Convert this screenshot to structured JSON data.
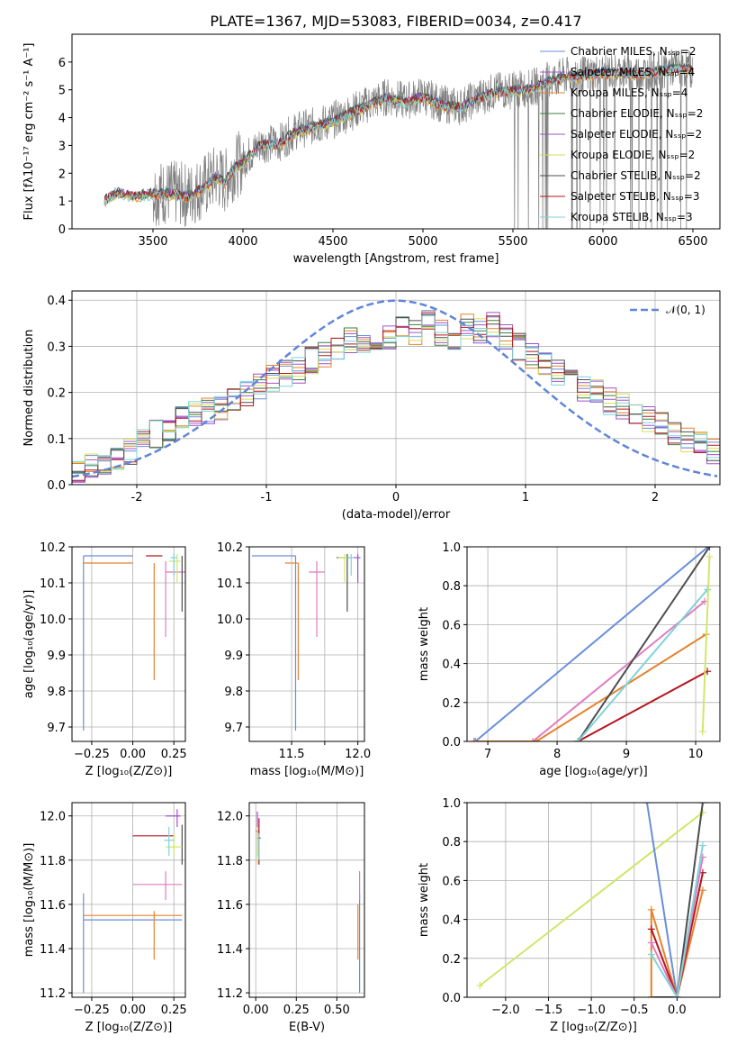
{
  "figure": {
    "title": "PLATE=1367, MJD=53083, FIBERID=0034, z=0.417"
  },
  "colors": {
    "blue": "#6a8ed8",
    "purple": "#a14fd1",
    "orange": "#e5822d",
    "green": "#3e7f3e",
    "violet": "#9b57c6",
    "yellow": "#d6dc50",
    "dgray": "#4d4d4d",
    "red": "#b5161e",
    "cyan": "#7fd3d9",
    "pink": "#e07bc0",
    "lime": "#cde86a",
    "gray": "#808080"
  },
  "chart_data": [
    {
      "id": "spectrum",
      "type": "line",
      "xlabel": "wavelength [Angstrom, rest frame]",
      "ylabel": "Flux [fλ10⁻¹⁷ erg cm⁻² s⁻¹ A⁻¹]",
      "xlim": [
        3050,
        6650
      ],
      "ylim": [
        0,
        7
      ],
      "xticks": [
        3500,
        4000,
        4500,
        5000,
        5500,
        6000,
        6500
      ],
      "yticks": [
        0,
        1,
        2,
        3,
        4,
        5,
        6
      ],
      "grid": false,
      "legend_position": "top-right",
      "series": [
        {
          "name": "Chabrier MILES, N_SSP=2",
          "color": "#6a8ed8"
        },
        {
          "name": "Salpeter MILES, N_SSP=4",
          "color": "#a14fd1"
        },
        {
          "name": "Kroupa MILES, N_SSP=4",
          "color": "#e5822d"
        },
        {
          "name": "Chabrier ELODIE, N_SSP=2",
          "color": "#3e7f3e"
        },
        {
          "name": "Salpeter ELODIE, N_SSP=2",
          "color": "#9b57c6"
        },
        {
          "name": "Kroupa ELODIE, N_SSP=2",
          "color": "#d6dc50"
        },
        {
          "name": "Chabrier STELIB, N_SSP=2",
          "color": "#4d4d4d"
        },
        {
          "name": "Salpeter STELIB, N_SSP=3",
          "color": "#b5161e"
        },
        {
          "name": "Kroupa STELIB, N_SSP=3",
          "color": "#7fd3d9"
        }
      ],
      "model_continuum": [
        [
          3230,
          1.05
        ],
        [
          3300,
          1.35
        ],
        [
          3400,
          1.2
        ],
        [
          3500,
          1.3
        ],
        [
          3600,
          1.3
        ],
        [
          3700,
          1.2
        ],
        [
          3800,
          1.6
        ],
        [
          3850,
          1.9
        ],
        [
          3900,
          1.7
        ],
        [
          3950,
          2.2
        ],
        [
          4000,
          2.45
        ],
        [
          4100,
          3.05
        ],
        [
          4200,
          3.1
        ],
        [
          4300,
          3.55
        ],
        [
          4400,
          3.7
        ],
        [
          4500,
          3.9
        ],
        [
          4600,
          4.2
        ],
        [
          4700,
          4.5
        ],
        [
          4800,
          4.75
        ],
        [
          4900,
          4.6
        ],
        [
          5000,
          4.8
        ],
        [
          5100,
          4.5
        ],
        [
          5200,
          4.4
        ],
        [
          5300,
          4.7
        ],
        [
          5400,
          4.95
        ],
        [
          5500,
          5.0
        ],
        [
          5600,
          5.05
        ],
        [
          5700,
          5.35
        ],
        [
          5800,
          5.5
        ],
        [
          5900,
          5.55
        ],
        [
          6000,
          5.65
        ],
        [
          6100,
          5.65
        ],
        [
          6200,
          5.6
        ],
        [
          6300,
          5.7
        ],
        [
          6400,
          5.8
        ],
        [
          6500,
          5.75
        ],
        [
          6550,
          5.6
        ]
      ],
      "data_start": 3230,
      "data_end": 6500
    },
    {
      "id": "residuals",
      "type": "line",
      "xlabel": "(data-model)/error",
      "ylabel": "Normed distribution",
      "xlim": [
        -2.5,
        2.5
      ],
      "ylim": [
        0,
        0.42
      ],
      "xticks": [
        -2,
        -1,
        0,
        1,
        2
      ],
      "yticks": [
        0.0,
        0.1,
        0.2,
        0.3,
        0.4
      ],
      "grid": true,
      "legend_position": "top-right",
      "legend": "𝒩(0, 1)",
      "gaussian_color": "#5f86d6",
      "hist_centers": [
        -2.45,
        -2.35,
        -2.25,
        -2.15,
        -2.05,
        -1.95,
        -1.85,
        -1.75,
        -1.65,
        -1.55,
        -1.45,
        -1.35,
        -1.25,
        -1.15,
        -1.05,
        -0.95,
        -0.85,
        -0.75,
        -0.65,
        -0.55,
        -0.45,
        -0.35,
        -0.25,
        -0.15,
        -0.05,
        0.05,
        0.15,
        0.25,
        0.35,
        0.45,
        0.55,
        0.65,
        0.75,
        0.85,
        0.95,
        1.05,
        1.15,
        1.25,
        1.35,
        1.45,
        1.55,
        1.65,
        1.75,
        1.85,
        1.95,
        2.05,
        2.15,
        2.25,
        2.35,
        2.45
      ],
      "hist_base": [
        0.03,
        0.04,
        0.05,
        0.06,
        0.07,
        0.09,
        0.11,
        0.12,
        0.14,
        0.15,
        0.16,
        0.17,
        0.19,
        0.2,
        0.21,
        0.23,
        0.24,
        0.25,
        0.27,
        0.28,
        0.29,
        0.31,
        0.3,
        0.29,
        0.32,
        0.34,
        0.33,
        0.35,
        0.33,
        0.32,
        0.34,
        0.33,
        0.35,
        0.32,
        0.3,
        0.28,
        0.26,
        0.24,
        0.23,
        0.21,
        0.2,
        0.18,
        0.17,
        0.15,
        0.14,
        0.13,
        0.11,
        0.1,
        0.09,
        0.07
      ],
      "hist_colors": [
        "#6a8ed8",
        "#a14fd1",
        "#e5822d",
        "#3e7f3e",
        "#9b57c6",
        "#d6dc50",
        "#4d4d4d",
        "#b5161e",
        "#7fd3d9"
      ]
    },
    {
      "id": "age_vs_Z",
      "type": "scatter",
      "xlabel": "Z [log₁₀(Z/Z⊙)]",
      "ylabel": "age  [log₁₀(age/yr)]",
      "xlim": [
        -0.37,
        0.32
      ],
      "ylim": [
        9.66,
        10.2
      ],
      "xticks": [
        -0.25,
        0.0,
        0.25
      ],
      "xticklabels": [
        "−0.25",
        "0.00",
        "0.25"
      ],
      "yticks": [
        9.7,
        9.8,
        9.9,
        10.0,
        10.1,
        10.2
      ],
      "grid": true,
      "points": [
        {
          "x": -0.3,
          "y": 10.175,
          "xl": 0.0,
          "xh": 0.3,
          "yl": 9.69,
          "yh": 10.175,
          "c": "#6a8ed8"
        },
        {
          "x": -0.3,
          "y": 10.155,
          "xl": 0.0,
          "xh": 0.3,
          "yl": 10.155,
          "yh": 10.155,
          "c": "#e5822d"
        },
        {
          "x": 0.13,
          "y": 10.155,
          "xl": 0.0,
          "xh": 0.0,
          "yl": 9.83,
          "yh": 10.155,
          "c": "#e5822d"
        },
        {
          "x": 0.2,
          "y": 10.13,
          "xl": 0.0,
          "xh": 0.3,
          "yl": 9.95,
          "yh": 10.16,
          "c": "#e07bc0"
        },
        {
          "x": 0.3,
          "y": 10.175,
          "xl": 0.0,
          "xh": 0.0,
          "yl": 10.02,
          "yh": 10.175,
          "c": "#4d4d4d"
        },
        {
          "x": 0.18,
          "y": 10.175,
          "xl": 0.1,
          "xh": 0.0,
          "yl": 10.175,
          "yh": 10.175,
          "c": "#b5161e"
        },
        {
          "x": 0.27,
          "y": 10.16,
          "xl": 0.05,
          "xh": 0.02,
          "yl": 10.1,
          "yh": 10.18,
          "c": "#cde86a"
        },
        {
          "x": 0.25,
          "y": 10.17,
          "xl": 0.02,
          "xh": 0.02,
          "yl": 10.12,
          "yh": 10.18,
          "c": "#7fd3d9"
        }
      ]
    },
    {
      "id": "age_vs_mass",
      "type": "scatter",
      "xlabel": "mass [log₁₀(M/M⊙)]",
      "ylabel": "",
      "xlim": [
        11.18,
        12.05
      ],
      "ylim": [
        9.66,
        10.2
      ],
      "xticks": [
        11.5,
        11.75,
        12.0
      ],
      "xticklabels": [
        "11.5",
        "",
        "12.0"
      ],
      "yticks": [
        9.7,
        9.8,
        9.9,
        10.0,
        10.1,
        10.2
      ],
      "grid": true,
      "points": [
        {
          "x": 11.53,
          "y": 10.175,
          "xl": 0.33,
          "xh": 0.0,
          "yl": 9.69,
          "yh": 10.175,
          "c": "#6a8ed8"
        },
        {
          "x": 11.55,
          "y": 10.155,
          "xl": 0.1,
          "xh": 0.0,
          "yl": 9.83,
          "yh": 10.155,
          "c": "#e5822d"
        },
        {
          "x": 11.69,
          "y": 10.13,
          "xl": 0.06,
          "xh": 0.06,
          "yl": 9.95,
          "yh": 10.16,
          "c": "#e07bc0"
        },
        {
          "x": 11.92,
          "y": 10.17,
          "xl": 0.08,
          "xh": 0.02,
          "yl": 10.02,
          "yh": 10.18,
          "c": "#4d4d4d"
        },
        {
          "x": 12.0,
          "y": 10.17,
          "xl": 0.03,
          "xh": 0.02,
          "yl": 10.1,
          "yh": 10.18,
          "c": "#a14fd1"
        },
        {
          "x": 11.9,
          "y": 10.17,
          "xl": 0.05,
          "xh": 0.02,
          "yl": 10.1,
          "yh": 10.18,
          "c": "#cde86a"
        },
        {
          "x": 11.95,
          "y": 10.17,
          "xl": 0.03,
          "xh": 0.02,
          "yl": 10.12,
          "yh": 10.18,
          "c": "#7fd3d9"
        }
      ]
    },
    {
      "id": "weight_vs_age",
      "type": "line",
      "xlabel": "age  [log₁₀(age/yr)]",
      "ylabel": "mass weight",
      "xlim": [
        6.7,
        10.35
      ],
      "ylim": [
        0,
        1
      ],
      "xticks": [
        7,
        8,
        9,
        10
      ],
      "yticks": [
        0.0,
        0.2,
        0.4,
        0.6,
        0.8,
        1.0
      ],
      "yticklabels": [
        "0.0",
        "0.2",
        "0.4",
        "0.6",
        "0.8",
        "1.0"
      ],
      "grid": true,
      "lines": [
        {
          "c": "#6a8ed8",
          "pts": [
            [
              6.82,
              0
            ],
            [
              10.18,
              1.0
            ]
          ]
        },
        {
          "c": "#e07bc0",
          "pts": [
            [
              7.65,
              0
            ],
            [
              10.13,
              0.72
            ]
          ]
        },
        {
          "c": "#e5822d",
          "pts": [
            [
              6.8,
              0
            ],
            [
              7.7,
              0
            ],
            [
              10.15,
              0.55
            ]
          ]
        },
        {
          "c": "#b5161e",
          "pts": [
            [
              8.3,
              0
            ],
            [
              10.17,
              0.36
            ]
          ]
        },
        {
          "c": "#4d4d4d",
          "pts": [
            [
              8.3,
              0
            ],
            [
              10.2,
              1.0
            ]
          ]
        },
        {
          "c": "#7fd3d9",
          "pts": [
            [
              8.3,
              0
            ],
            [
              10.17,
              0.78
            ]
          ]
        },
        {
          "c": "#cde86a",
          "pts": [
            [
              10.1,
              0.05
            ],
            [
              10.2,
              0.95
            ]
          ]
        }
      ]
    },
    {
      "id": "mass_vs_Z",
      "type": "scatter",
      "xlabel": "Z [log₁₀(Z/Z⊙)]",
      "ylabel": "mass [log₁₀(M/M⊙)]",
      "xlim": [
        -0.37,
        0.32
      ],
      "ylim": [
        11.18,
        12.06
      ],
      "xticks": [
        -0.25,
        0.0,
        0.25
      ],
      "xticklabels": [
        "−0.25",
        "0.00",
        "0.25"
      ],
      "yticks": [
        11.2,
        11.4,
        11.6,
        11.8,
        12.0
      ],
      "grid": true,
      "points": [
        {
          "x": -0.3,
          "y": 11.53,
          "xl": 0.0,
          "xh": 0.6,
          "yl": 11.2,
          "yh": 11.65,
          "c": "#6a8ed8"
        },
        {
          "x": -0.3,
          "y": 11.55,
          "xl": 0.0,
          "xh": 0.6,
          "yl": 11.55,
          "yh": 11.55,
          "c": "#e5822d"
        },
        {
          "x": 0.13,
          "y": 11.55,
          "xl": 0.0,
          "xh": 0.0,
          "yl": 11.35,
          "yh": 11.57,
          "c": "#e5822d"
        },
        {
          "x": 0.2,
          "y": 11.69,
          "xl": 0.2,
          "xh": 0.1,
          "yl": 11.62,
          "yh": 11.75,
          "c": "#e07bc0"
        },
        {
          "x": 0.3,
          "y": 11.92,
          "xl": 0.0,
          "xh": 0.0,
          "yl": 11.78,
          "yh": 11.96,
          "c": "#4d4d4d"
        },
        {
          "x": 0.15,
          "y": 11.91,
          "xl": 0.15,
          "xh": 0.1,
          "yl": 11.91,
          "yh": 11.91,
          "c": "#b5161e"
        },
        {
          "x": 0.27,
          "y": 12.0,
          "xl": 0.07,
          "xh": 0.02,
          "yl": 11.95,
          "yh": 12.03,
          "c": "#a14fd1"
        },
        {
          "x": 0.25,
          "y": 11.86,
          "xl": 0.05,
          "xh": 0.05,
          "yl": 11.82,
          "yh": 11.92,
          "c": "#cde86a"
        },
        {
          "x": 0.22,
          "y": 11.89,
          "xl": 0.03,
          "xh": 0.03,
          "yl": 11.82,
          "yh": 11.95,
          "c": "#7fd3d9"
        }
      ]
    },
    {
      "id": "mass_vs_EBV",
      "type": "scatter",
      "xlabel": "E(B-V)",
      "ylabel": "",
      "xlim": [
        -0.04,
        0.67
      ],
      "ylim": [
        11.18,
        12.06
      ],
      "xticks": [
        0.0,
        0.25,
        0.5
      ],
      "xticklabels": [
        "0.00",
        "0.25",
        "0.50"
      ],
      "yticks": [
        11.2,
        11.4,
        11.6,
        11.8,
        12.0
      ],
      "grid": true,
      "points": [
        {
          "x": 0.01,
          "y": 11.93,
          "xl": 0.01,
          "xh": 0.01,
          "yl": 11.82,
          "yh": 12.02,
          "c": "#a14fd1"
        },
        {
          "x": 0.02,
          "y": 11.9,
          "xl": 0.01,
          "xh": 0.01,
          "yl": 11.78,
          "yh": 11.99,
          "c": "#b5161e"
        },
        {
          "x": 0.01,
          "y": 11.85,
          "xl": 0.01,
          "xh": 0.01,
          "yl": 11.78,
          "yh": 11.95,
          "c": "#cde86a"
        },
        {
          "x": 0.02,
          "y": 11.86,
          "xl": 0.0,
          "xh": 0.0,
          "yl": 11.8,
          "yh": 11.92,
          "c": "#7fd3d9"
        },
        {
          "x": 0.64,
          "y": 11.53,
          "xl": 0.0,
          "xh": 0.0,
          "yl": 11.2,
          "yh": 11.65,
          "c": "#6a8ed8"
        },
        {
          "x": 0.63,
          "y": 11.55,
          "xl": 0.0,
          "xh": 0.0,
          "yl": 11.35,
          "yh": 11.6,
          "c": "#e5822d"
        },
        {
          "x": 0.64,
          "y": 11.69,
          "xl": 0.0,
          "xh": 0.0,
          "yl": 11.62,
          "yh": 11.75,
          "c": "#e07bc0"
        }
      ]
    },
    {
      "id": "weight_vs_Z",
      "type": "line",
      "xlabel": "Z [log₁₀(Z/Z⊙)]",
      "ylabel": "mass weight",
      "xlim": [
        -2.45,
        0.5
      ],
      "ylim": [
        0,
        1
      ],
      "xticks": [
        -2.0,
        -1.5,
        -1.0,
        -0.5,
        0.0
      ],
      "xticklabels": [
        "−2.0",
        "−1.5",
        "−1.0",
        "−0.5",
        "0.0"
      ],
      "yticks": [
        0.0,
        0.2,
        0.4,
        0.6,
        0.8,
        1.0
      ],
      "yticklabels": [
        "0.0",
        "0.2",
        "0.4",
        "0.6",
        "0.8",
        "1.0"
      ],
      "grid": true,
      "lines": [
        {
          "c": "#cde86a",
          "pts": [
            [
              -2.3,
              0.06
            ],
            [
              0.3,
              0.95
            ]
          ]
        },
        {
          "c": "#6a8ed8",
          "pts": [
            [
              -0.35,
              1.0
            ],
            [
              0.0,
              0.0
            ]
          ]
        },
        {
          "c": "#4d4d4d",
          "pts": [
            [
              -0.3,
              0.0
            ],
            [
              0.0,
              0.0
            ],
            [
              0.3,
              1.0
            ]
          ]
        },
        {
          "c": "#e5822d",
          "pts": [
            [
              -0.3,
              0.0
            ],
            [
              -0.3,
              0.45
            ],
            [
              0.0,
              0.0
            ],
            [
              0.3,
              0.55
            ]
          ]
        },
        {
          "c": "#b5161e",
          "pts": [
            [
              -0.3,
              0.35
            ],
            [
              0.0,
              0.0
            ],
            [
              0.3,
              0.64
            ]
          ]
        },
        {
          "c": "#e07bc0",
          "pts": [
            [
              -0.3,
              0.28
            ],
            [
              0.0,
              0.0
            ],
            [
              0.3,
              0.72
            ]
          ]
        },
        {
          "c": "#7fd3d9",
          "pts": [
            [
              -0.3,
              0.22
            ],
            [
              0.0,
              0.0
            ],
            [
              0.3,
              0.78
            ]
          ]
        }
      ]
    }
  ]
}
